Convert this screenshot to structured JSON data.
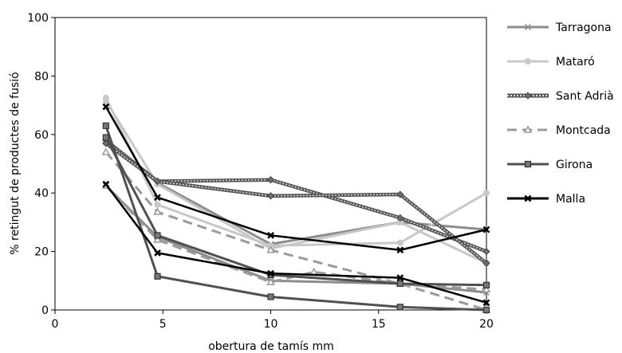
{
  "chart_data": {
    "type": "line",
    "title": "",
    "xlabel": "obertura de tamís mm",
    "ylabel": "% retingut de productes de fusió",
    "xlim": [
      0,
      20
    ],
    "ylim": [
      0,
      100
    ],
    "xticks": [
      0,
      5,
      10,
      15,
      20
    ],
    "yticks": [
      0,
      20,
      40,
      60,
      80,
      100
    ],
    "grid": false,
    "legend_position": "right",
    "series": [
      {
        "name": "Tarragona",
        "group": 0,
        "color": "#8c8c8c",
        "dash": "solid",
        "marker": "x",
        "lines": [
          {
            "x": [
              2.36,
              4.75,
              10,
              16,
              20
            ],
            "y": [
              57.5,
              43.5,
              22.5,
              30,
              27.5
            ]
          },
          {
            "x": [
              2.36,
              4.75,
              10,
              16,
              20
            ],
            "y": [
              42.5,
              25,
              10,
              9,
              6
            ]
          }
        ]
      },
      {
        "name": "Mataró",
        "group": 1,
        "color": "#c8c8c8",
        "dash": "solid",
        "marker": "circle",
        "lines": [
          {
            "x": [
              2.36,
              4.75,
              10,
              16,
              20
            ],
            "y": [
              72.5,
              36,
              22,
              23,
              40
            ]
          },
          {
            "x": [
              2.36,
              4.75,
              10,
              16,
              20
            ],
            "y": [
              71.5,
              43,
              21,
              30,
              16
            ]
          }
        ]
      },
      {
        "name": "Sant Adrià",
        "group": 2,
        "color": "#6e6e6e",
        "dash": "dotted",
        "marker": "diamond",
        "lines": [
          {
            "x": [
              2.36,
              4.75,
              10,
              16,
              20
            ],
            "y": [
              58,
              44,
              44.5,
              31.5,
              20
            ]
          },
          {
            "x": [
              2.36,
              4.75,
              10,
              16,
              20
            ],
            "y": [
              57,
              44,
              39,
              39.5,
              16
            ]
          }
        ]
      },
      {
        "name": "Montcada",
        "group": 3,
        "color": "#9a9a9a",
        "dash": "dashed",
        "marker": "triangle",
        "lines": [
          {
            "x": [
              2.36,
              4.75,
              10,
              16,
              20
            ],
            "y": [
              54,
              33.5,
              20.5,
              9,
              0
            ]
          },
          {
            "x": [
              2.36,
              4.75,
              10,
              12,
              16,
              20
            ],
            "y": [
              42.5,
              24,
              9.5,
              13,
              9,
              7
            ]
          }
        ]
      },
      {
        "name": "Girona",
        "group": 4,
        "color": "#505050",
        "dash": "solid",
        "marker": "square",
        "lines": [
          {
            "x": [
              2.36,
              4.75,
              10,
              16,
              20
            ],
            "y": [
              63,
              11.5,
              4.5,
              1,
              0
            ]
          },
          {
            "x": [
              2.36,
              4.75,
              10,
              16,
              20
            ],
            "y": [
              59,
              25.5,
              12,
              9,
              8.5
            ]
          }
        ]
      },
      {
        "name": "Malla",
        "group": 5,
        "color": "#000000",
        "dash": "solid",
        "marker": "star",
        "lines": [
          {
            "x": [
              2.36,
              4.75,
              10,
              16,
              20
            ],
            "y": [
              69.5,
              38.5,
              25.5,
              20.5,
              27.5
            ]
          },
          {
            "x": [
              2.36,
              4.75,
              10,
              16,
              20
            ],
            "y": [
              43,
              19.5,
              12.5,
              11,
              2.5
            ]
          }
        ]
      }
    ]
  }
}
